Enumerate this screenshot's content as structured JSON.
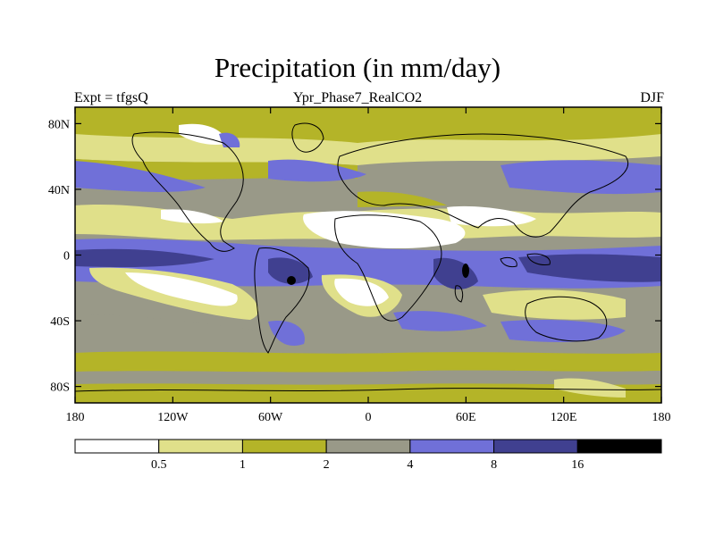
{
  "title": "Precipitation (in mm/day)",
  "subtitle_left": "Expt = tfgsQ",
  "subtitle_center": "Ypr_Phase7_RealCO2",
  "subtitle_right": "DJF",
  "lat_ticks": [
    {
      "value": 80,
      "label": "80N"
    },
    {
      "value": 40,
      "label": "40N"
    },
    {
      "value": 0,
      "label": "0"
    },
    {
      "value": -40,
      "label": "40S"
    },
    {
      "value": -80,
      "label": "80S"
    }
  ],
  "lon_ticks": [
    {
      "value": -180,
      "label": "180"
    },
    {
      "value": -120,
      "label": "120W"
    },
    {
      "value": -60,
      "label": "60W"
    },
    {
      "value": 0,
      "label": "0"
    },
    {
      "value": 60,
      "label": "60E"
    },
    {
      "value": 120,
      "label": "120E"
    },
    {
      "value": 180,
      "label": "180"
    }
  ],
  "colorbar": {
    "levels": [
      "0.5",
      "1",
      "2",
      "4",
      "8",
      "16"
    ],
    "colors": [
      "#ffffff",
      "#e0e08a",
      "#b4b428",
      "#999988",
      "#7070d8",
      "#404090",
      "#000000"
    ]
  }
}
